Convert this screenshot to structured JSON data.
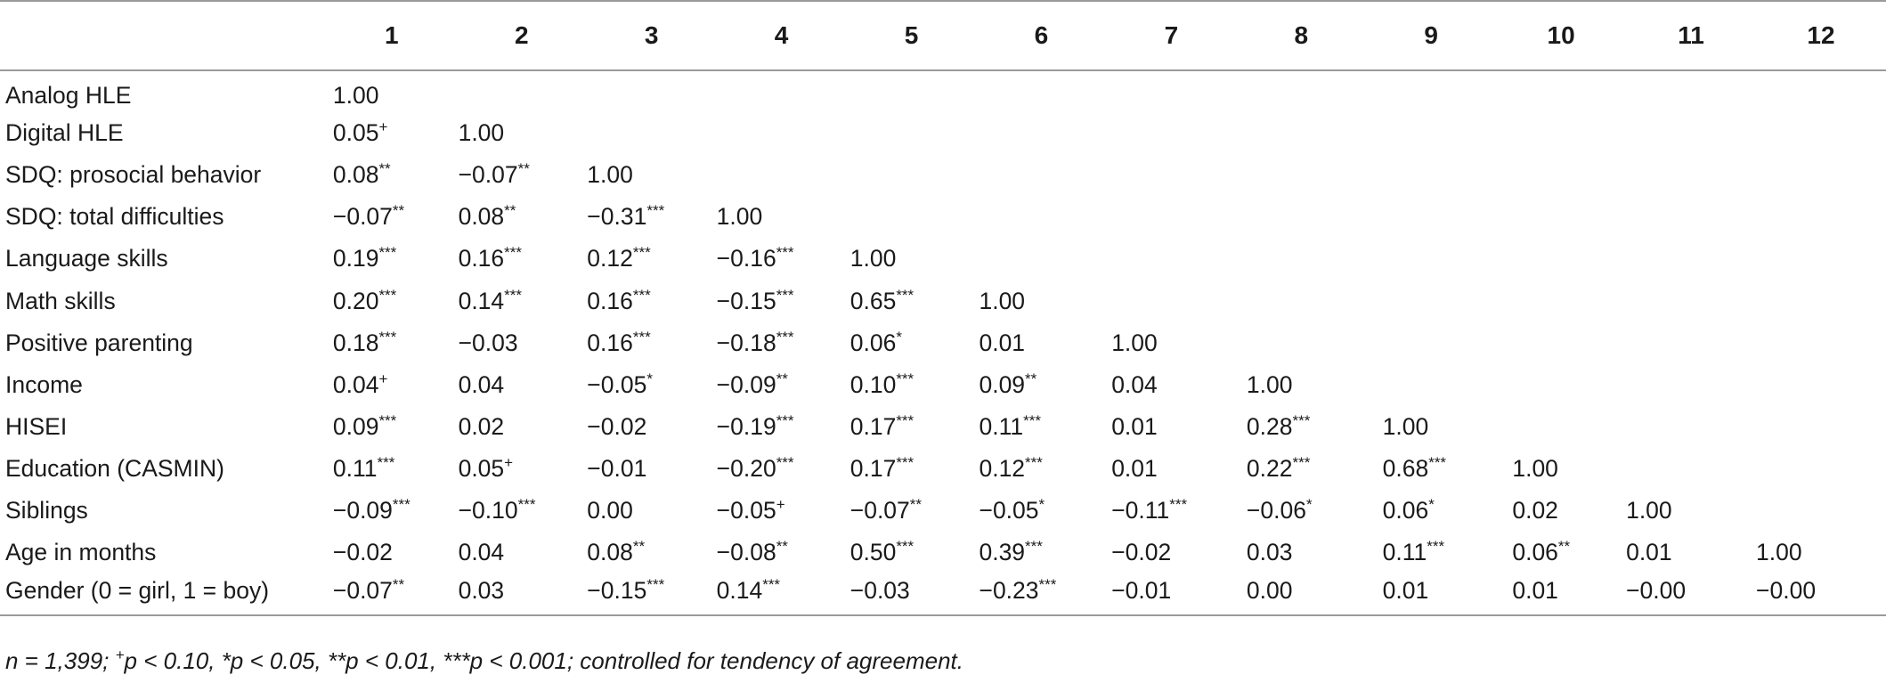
{
  "table": {
    "columns": [
      "1",
      "2",
      "3",
      "4",
      "5",
      "6",
      "7",
      "8",
      "9",
      "10",
      "11",
      "12"
    ],
    "rows": [
      {
        "label": "Analog HLE",
        "cells": [
          [
            "1.00",
            ""
          ]
        ]
      },
      {
        "label": "Digital HLE",
        "cells": [
          [
            "0.05",
            "+"
          ],
          [
            "1.00",
            ""
          ]
        ]
      },
      {
        "label": "SDQ: prosocial behavior",
        "cells": [
          [
            "0.08",
            "**"
          ],
          [
            "−0.07",
            "**"
          ],
          [
            "1.00",
            ""
          ]
        ]
      },
      {
        "label": "SDQ: total difficulties",
        "cells": [
          [
            "−0.07",
            "**"
          ],
          [
            "0.08",
            "**"
          ],
          [
            "−0.31",
            "***"
          ],
          [
            "1.00",
            ""
          ]
        ]
      },
      {
        "label": "Language skills",
        "cells": [
          [
            "0.19",
            "***"
          ],
          [
            "0.16",
            "***"
          ],
          [
            "0.12",
            "***"
          ],
          [
            "−0.16",
            "***"
          ],
          [
            "1.00",
            ""
          ]
        ]
      },
      {
        "label": "Math skills",
        "cells": [
          [
            "0.20",
            "***"
          ],
          [
            "0.14",
            "***"
          ],
          [
            "0.16",
            "***"
          ],
          [
            "−0.15",
            "***"
          ],
          [
            "0.65",
            "***"
          ],
          [
            "1.00",
            ""
          ]
        ]
      },
      {
        "label": "Positive parenting",
        "cells": [
          [
            "0.18",
            "***"
          ],
          [
            "−0.03",
            ""
          ],
          [
            "0.16",
            "***"
          ],
          [
            "−0.18",
            "***"
          ],
          [
            "0.06",
            "*"
          ],
          [
            "0.01",
            ""
          ],
          [
            "1.00",
            ""
          ]
        ]
      },
      {
        "label": "Income",
        "cells": [
          [
            "0.04",
            "+"
          ],
          [
            "0.04",
            ""
          ],
          [
            "−0.05",
            "*"
          ],
          [
            "−0.09",
            "**"
          ],
          [
            "0.10",
            "***"
          ],
          [
            "0.09",
            "**"
          ],
          [
            "0.04",
            ""
          ],
          [
            "1.00",
            ""
          ]
        ]
      },
      {
        "label": "HISEI",
        "cells": [
          [
            "0.09",
            "***"
          ],
          [
            "0.02",
            ""
          ],
          [
            "−0.02",
            ""
          ],
          [
            "−0.19",
            "***"
          ],
          [
            "0.17",
            "***"
          ],
          [
            "0.11",
            "***"
          ],
          [
            "0.01",
            ""
          ],
          [
            "0.28",
            "***"
          ],
          [
            "1.00",
            ""
          ]
        ]
      },
      {
        "label": "Education (CASMIN)",
        "cells": [
          [
            "0.11",
            "***"
          ],
          [
            "0.05",
            "+"
          ],
          [
            "−0.01",
            ""
          ],
          [
            "−0.20",
            "***"
          ],
          [
            "0.17",
            "***"
          ],
          [
            "0.12",
            "***"
          ],
          [
            "0.01",
            ""
          ],
          [
            "0.22",
            "***"
          ],
          [
            "0.68",
            "***"
          ],
          [
            "1.00",
            ""
          ]
        ]
      },
      {
        "label": "Siblings",
        "cells": [
          [
            "−0.09",
            "***"
          ],
          [
            "−0.10",
            "***"
          ],
          [
            "0.00",
            ""
          ],
          [
            "−0.05",
            "+"
          ],
          [
            "−0.07",
            "**"
          ],
          [
            "−0.05",
            "*"
          ],
          [
            "−0.11",
            "***"
          ],
          [
            "−0.06",
            "*"
          ],
          [
            "0.06",
            "*"
          ],
          [
            "0.02",
            ""
          ],
          [
            "1.00",
            ""
          ]
        ]
      },
      {
        "label": "Age in months",
        "cells": [
          [
            "−0.02",
            ""
          ],
          [
            "0.04",
            ""
          ],
          [
            "0.08",
            "**"
          ],
          [
            "−0.08",
            "**"
          ],
          [
            "0.50",
            "***"
          ],
          [
            "0.39",
            "***"
          ],
          [
            "−0.02",
            ""
          ],
          [
            "0.03",
            ""
          ],
          [
            "0.11",
            "***"
          ],
          [
            "0.06",
            "**"
          ],
          [
            "0.01",
            ""
          ],
          [
            "1.00",
            ""
          ]
        ]
      },
      {
        "label": "Gender (0 = girl, 1 = boy)",
        "cells": [
          [
            "−0.07",
            "**"
          ],
          [
            "0.03",
            ""
          ],
          [
            "−0.15",
            "***"
          ],
          [
            "0.14",
            "***"
          ],
          [
            "−0.03",
            ""
          ],
          [
            "−0.23",
            "***"
          ],
          [
            "−0.01",
            ""
          ],
          [
            "0.00",
            ""
          ],
          [
            "0.01",
            ""
          ],
          [
            "0.01",
            ""
          ],
          [
            "−0.00",
            ""
          ],
          [
            "−0.00",
            ""
          ]
        ]
      }
    ]
  },
  "note": {
    "n": "n = 1,399; ",
    "plus_sup": "+",
    "text": "p < 0.10, *p < 0.05, **p < 0.01, ***p < 0.001; controlled for tendency of agreement."
  }
}
